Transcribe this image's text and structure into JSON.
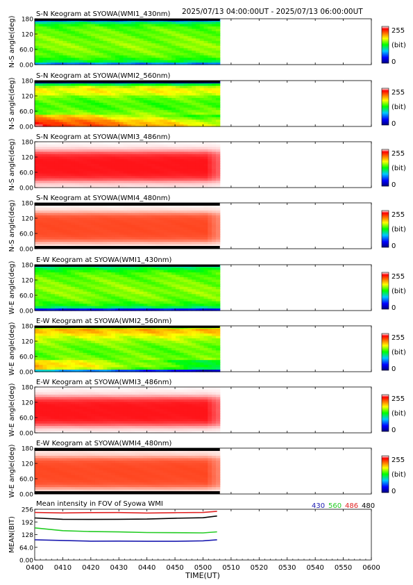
{
  "header": {
    "time_range": "2025/07/13 04:00:00UT - 2025/07/13 06:00:00UT"
  },
  "colorbar": {
    "max_label": "255",
    "unit_label": "(bit)",
    "min_label": "0"
  },
  "keogram_ytick_labels": [
    "180",
    "120",
    "60.0",
    "0.00"
  ],
  "mean_panel": {
    "title": "Mean intensity in FOV of Syowa WMI",
    "ylabel": "MEAN(BIT)",
    "legend": [
      {
        "label": "430",
        "color": "#1a1ab0"
      },
      {
        "label": "560",
        "color": "#22cc22"
      },
      {
        "label": "486",
        "color": "#e02020"
      },
      {
        "label": "480",
        "color": "#000000"
      }
    ]
  },
  "x_axis": {
    "label": "TIME(UT)",
    "ticks": [
      "0400",
      "0410",
      "0420",
      "0430",
      "0440",
      "0450",
      "0500",
      "0510",
      "0520",
      "0530",
      "0540",
      "0550",
      "0600"
    ]
  },
  "chart_data": [
    {
      "type": "heatmap",
      "title": "S-N Keogram at SYOWA(WMI1_430nm)",
      "ylabel": "N-S angle(deg)",
      "ylim": [
        0,
        180
      ],
      "data_end_time": "0506",
      "style": "green",
      "profile": [
        70,
        118,
        132,
        140,
        145,
        146,
        148,
        150,
        150,
        148,
        148,
        146,
        145,
        144,
        143,
        140,
        132,
        110,
        60
      ]
    },
    {
      "type": "heatmap",
      "title": "S-N Keogram at SYOWA(WMI2_560nm)",
      "ylabel": "N-S angle(deg)",
      "ylim": [
        0,
        180
      ],
      "data_end_time": "0506",
      "style": "green-yellow",
      "profile": [
        205,
        200,
        192,
        178,
        165,
        150,
        145,
        140,
        138,
        138,
        140,
        143,
        150,
        165,
        170,
        172,
        160,
        120,
        10
      ]
    },
    {
      "type": "heatmap",
      "title": "S-N Keogram at SYOWA(WMI3_486nm)",
      "ylabel": "N-S angle(deg)",
      "ylim": [
        0,
        180
      ],
      "data_end_time": "0506",
      "style": "red",
      "profile": [
        30,
        50,
        100,
        180,
        225,
        245,
        252,
        255,
        255,
        255,
        255,
        252,
        245,
        225,
        180,
        100,
        50,
        20,
        10
      ]
    },
    {
      "type": "heatmap",
      "title": "S-N Keogram at SYOWA(WMI4_480nm)",
      "ylabel": "N-S angle(deg)",
      "ylim": [
        0,
        180
      ],
      "data_end_time": "0506",
      "style": "orange",
      "profile": [
        10,
        40,
        90,
        170,
        215,
        230,
        235,
        237,
        238,
        238,
        237,
        235,
        230,
        215,
        170,
        90,
        40,
        20,
        5
      ]
    },
    {
      "type": "heatmap",
      "title": "E-W Keogram at SYOWA(WMI1_430nm)",
      "ylabel": "W-E angle(deg)",
      "ylim": [
        0,
        180
      ],
      "data_end_time": "0506",
      "style": "green",
      "profile": [
        40,
        110,
        130,
        138,
        144,
        146,
        148,
        150,
        150,
        150,
        148,
        147,
        146,
        145,
        143,
        140,
        132,
        120,
        100
      ]
    },
    {
      "type": "heatmap",
      "title": "E-W Keogram at SYOWA(WMI2_560nm)",
      "ylabel": "W-E angle(deg)",
      "ylim": [
        0,
        180
      ],
      "data_end_time": "0506",
      "style": "green-yellow",
      "profile": [
        60,
        150,
        160,
        158,
        152,
        148,
        145,
        143,
        143,
        144,
        145,
        148,
        152,
        158,
        165,
        175,
        185,
        190,
        150
      ]
    },
    {
      "type": "heatmap",
      "title": "E-W Keogram at SYOWA(WMI3_486nm)",
      "ylabel": "W-E angle(deg)",
      "ylim": [
        0,
        180
      ],
      "data_end_time": "0506",
      "style": "red",
      "profile": [
        20,
        40,
        90,
        170,
        220,
        245,
        252,
        255,
        255,
        255,
        255,
        252,
        245,
        220,
        170,
        90,
        40,
        20,
        10
      ]
    },
    {
      "type": "heatmap",
      "title": "E-W Keogram at SYOWA(WMI4_480nm)",
      "ylabel": "W-E angle(deg)",
      "ylim": [
        0,
        180
      ],
      "data_end_time": "0506",
      "style": "orange",
      "profile": [
        40,
        60,
        120,
        190,
        222,
        232,
        236,
        238,
        238,
        238,
        238,
        236,
        232,
        222,
        190,
        120,
        60,
        40,
        20
      ]
    },
    {
      "type": "line",
      "title": "Mean intensity in FOV of Syowa WMI",
      "xlabel": "TIME(UT)",
      "ylabel": "MEAN(BIT)",
      "ylim": [
        0,
        256
      ],
      "yticks": [
        "256",
        "192",
        "128",
        "64.0",
        "0.00"
      ],
      "x": [
        "0400",
        "0410",
        "0420",
        "0430",
        "0440",
        "0450",
        "0500",
        "0505"
      ],
      "series": [
        {
          "name": "430",
          "color": "#1a1ab0",
          "values": [
            102,
            98,
            96,
            95,
            94,
            95,
            96,
            102
          ]
        },
        {
          "name": "560",
          "color": "#22cc22",
          "values": [
            162,
            148,
            144,
            141,
            139,
            138,
            136,
            142
          ]
        },
        {
          "name": "486",
          "color": "#e02020",
          "values": [
            240,
            238,
            239,
            239,
            238,
            238,
            240,
            246
          ]
        },
        {
          "name": "480",
          "color": "#000000",
          "values": [
            212,
            206,
            204,
            206,
            207,
            210,
            214,
            222
          ]
        }
      ]
    }
  ]
}
